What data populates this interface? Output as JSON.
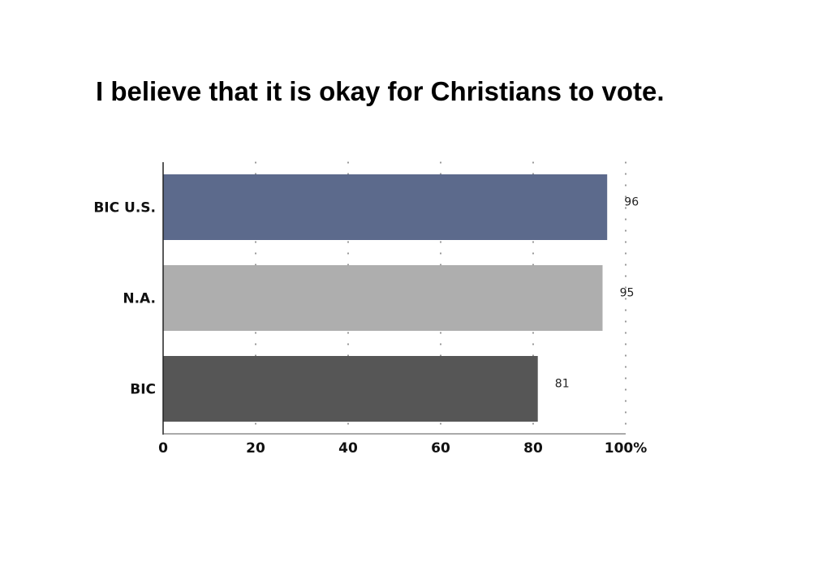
{
  "chart_data": {
    "type": "bar",
    "orientation": "horizontal",
    "title": "I believe that it is okay for Christians to vote.",
    "categories": [
      "BIC U.S.",
      "N.A.",
      "BIC"
    ],
    "values": [
      96,
      95,
      81
    ],
    "colors": [
      "#5c6a8c",
      "#aeaeae",
      "#565656"
    ],
    "x_ticks": [
      "0",
      "20",
      "40",
      "60",
      "80",
      "100%"
    ],
    "xlim": [
      0,
      100
    ],
    "grid": "dotted vertical",
    "legend": "none",
    "data_labels": true
  }
}
